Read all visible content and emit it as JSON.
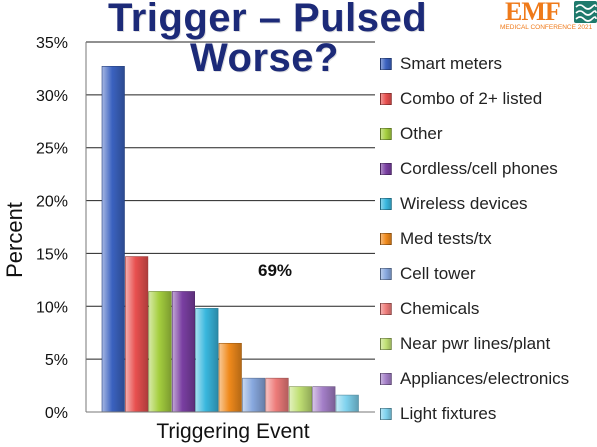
{
  "slide": {
    "title_line1": "Trigger – Pulsed",
    "title_line2": "Worse?",
    "logo": {
      "mark": "EMF",
      "subtitle": "MEDICAL CONFERENCE 2021"
    }
  },
  "chart_data": {
    "type": "bar",
    "xlabel": "Triggering Event",
    "ylabel": "Percent",
    "ylim": [
      0,
      35
    ],
    "yticks": [
      "0%",
      "5%",
      "10%",
      "15%",
      "20%",
      "25%",
      "30%",
      "35%"
    ],
    "grid": true,
    "legend_position": "right",
    "annotation": "69%",
    "series": [
      {
        "name": "Smart meters",
        "value": 32.7,
        "color": "#3b62c0"
      },
      {
        "name": "Combo of 2+ listed",
        "value": 14.7,
        "color": "#e8504f"
      },
      {
        "name": "Other",
        "value": 11.4,
        "color": "#a5cf3f"
      },
      {
        "name": "Cordless/cell phones",
        "value": 11.4,
        "color": "#7a3fa2"
      },
      {
        "name": "Wireless devices",
        "value": 9.8,
        "color": "#39b7de"
      },
      {
        "name": "Med tests/tx",
        "value": 6.5,
        "color": "#f08a1c"
      },
      {
        "name": "Cell tower",
        "value": 3.2,
        "color": "#88a8de"
      },
      {
        "name": "Chemicals",
        "value": 3.2,
        "color": "#ee7c7a"
      },
      {
        "name": "Near pwr lines/plant",
        "value": 2.4,
        "color": "#c0e074"
      },
      {
        "name": "Appliances/electronics",
        "value": 2.4,
        "color": "#a47fc8"
      },
      {
        "name": "Light fixtures",
        "value": 1.6,
        "color": "#7fd2ee"
      }
    ]
  }
}
